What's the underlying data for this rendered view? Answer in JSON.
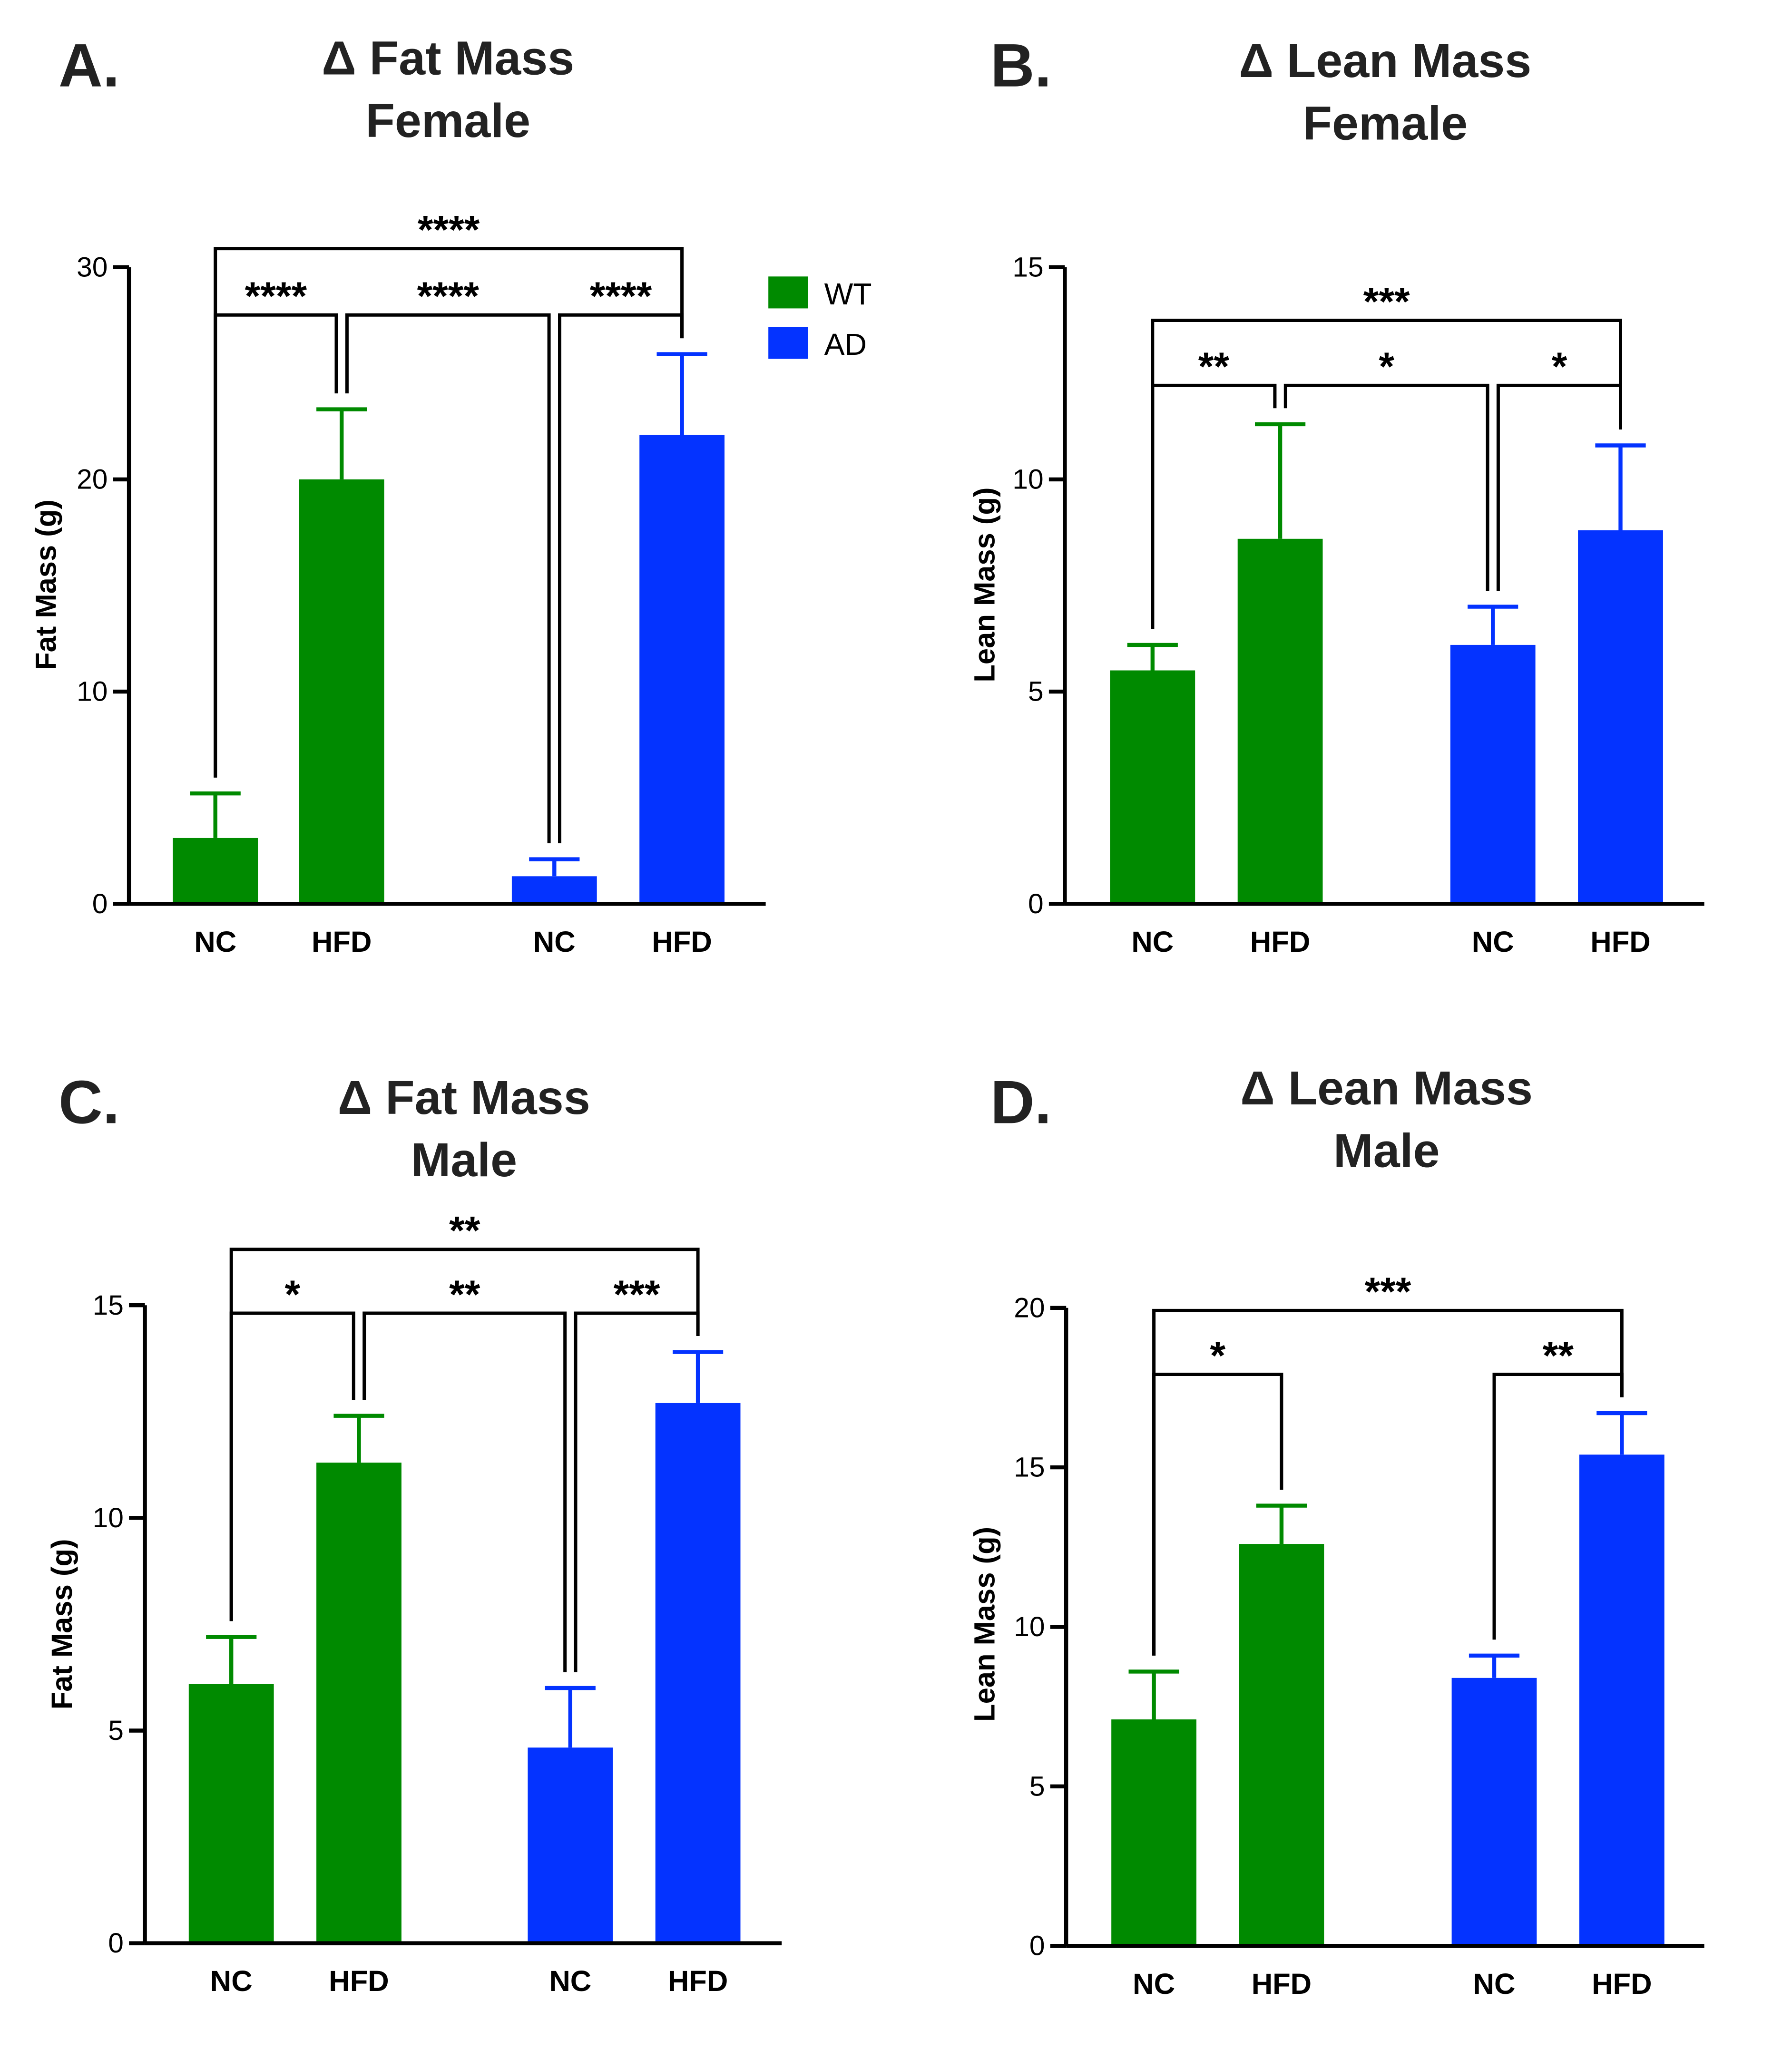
{
  "colors": {
    "wt": "#008a00",
    "ad": "#0433ff",
    "axis": "#000000",
    "letter": "#222222"
  },
  "legend": {
    "items": [
      {
        "label": "WT",
        "color": "#008a00"
      },
      {
        "label": "AD",
        "color": "#0433ff"
      }
    ]
  },
  "chart_data": [
    {
      "type": "bar",
      "panel_label": "A.",
      "title_lines": [
        "Δ Fat Mass",
        "Female"
      ],
      "ylabel": "Fat Mass (g)",
      "ylim": [
        0,
        30
      ],
      "yticks": [
        0,
        10,
        20,
        30
      ],
      "categories": [
        "NC",
        "HFD",
        "NC",
        "HFD"
      ],
      "groups": [
        "WT",
        "WT",
        "AD",
        "AD"
      ],
      "values": [
        3.1,
        20.0,
        1.3,
        22.1
      ],
      "errors": [
        2.1,
        3.3,
        0.8,
        3.8
      ],
      "significance": [
        {
          "from": 0,
          "to": 1,
          "label": "****",
          "level": 1
        },
        {
          "from": 1,
          "to": 2,
          "label": "****",
          "level": 1
        },
        {
          "from": 2,
          "to": 3,
          "label": "****",
          "level": 1
        },
        {
          "from": 0,
          "to": 3,
          "label": "****",
          "level": 2
        }
      ]
    },
    {
      "type": "bar",
      "panel_label": "B.",
      "title_lines": [
        "Δ Lean Mass",
        "Female"
      ],
      "ylabel": "Lean Mass (g)",
      "ylim": [
        0,
        15
      ],
      "yticks": [
        0,
        5,
        10,
        15
      ],
      "categories": [
        "NC",
        "HFD",
        "NC",
        "HFD"
      ],
      "groups": [
        "WT",
        "WT",
        "AD",
        "AD"
      ],
      "values": [
        5.5,
        8.6,
        6.1,
        8.8
      ],
      "errors": [
        0.6,
        2.7,
        0.9,
        2.0
      ],
      "significance": [
        {
          "from": 0,
          "to": 1,
          "label": "**",
          "level": 1
        },
        {
          "from": 1,
          "to": 2,
          "label": "*",
          "level": 1
        },
        {
          "from": 2,
          "to": 3,
          "label": "*",
          "level": 1
        },
        {
          "from": 0,
          "to": 3,
          "label": "***",
          "level": 2
        }
      ]
    },
    {
      "type": "bar",
      "panel_label": "C.",
      "title_lines": [
        "Δ Fat Mass",
        "Male"
      ],
      "ylabel": "Fat Mass (g)",
      "ylim": [
        0,
        15
      ],
      "yticks": [
        0,
        5,
        10,
        15
      ],
      "categories": [
        "NC",
        "HFD",
        "NC",
        "HFD"
      ],
      "groups": [
        "WT",
        "WT",
        "AD",
        "AD"
      ],
      "values": [
        6.1,
        11.3,
        4.6,
        12.7
      ],
      "errors": [
        1.1,
        1.1,
        1.4,
        1.2
      ],
      "significance": [
        {
          "from": 0,
          "to": 1,
          "label": "*",
          "level": 1
        },
        {
          "from": 1,
          "to": 2,
          "label": "**",
          "level": 1
        },
        {
          "from": 2,
          "to": 3,
          "label": "***",
          "level": 1
        },
        {
          "from": 0,
          "to": 3,
          "label": "**",
          "level": 2
        }
      ]
    },
    {
      "type": "bar",
      "panel_label": "D.",
      "title_lines": [
        "Δ Lean Mass",
        "Male"
      ],
      "ylabel": "Lean Mass (g)",
      "ylim": [
        0,
        20
      ],
      "yticks": [
        0,
        5,
        10,
        15,
        20
      ],
      "categories": [
        "NC",
        "HFD",
        "NC",
        "HFD"
      ],
      "groups": [
        "WT",
        "WT",
        "AD",
        "AD"
      ],
      "values": [
        7.1,
        12.6,
        8.4,
        15.4
      ],
      "errors": [
        1.5,
        1.2,
        0.7,
        1.3
      ],
      "significance": [
        {
          "from": 0,
          "to": 1,
          "label": "*",
          "level": 1
        },
        {
          "from": 2,
          "to": 3,
          "label": "**",
          "level": 1
        },
        {
          "from": 0,
          "to": 3,
          "label": "***",
          "level": 2
        }
      ]
    }
  ]
}
